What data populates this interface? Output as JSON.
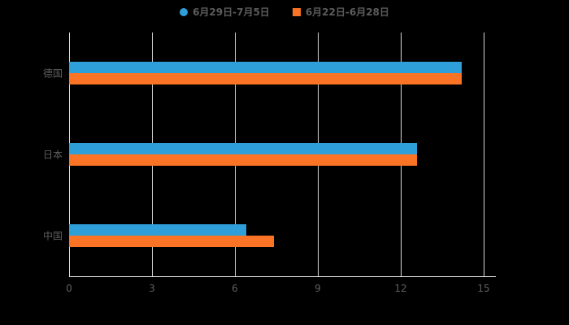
{
  "chart_data": {
    "type": "bar",
    "orientation": "horizontal",
    "title": "",
    "xlabel": "",
    "ylabel": "",
    "categories": [
      "德国",
      "日本",
      "中国"
    ],
    "series": [
      {
        "name": "6月29日-7月5日",
        "color": "#2E9FD9",
        "marker": "circle",
        "values": [
          14.2,
          12.6,
          6.4
        ]
      },
      {
        "name": "6月22日-6月28日",
        "color": "#FB7426",
        "marker": "square",
        "values": [
          14.2,
          12.6,
          7.4
        ]
      }
    ],
    "xlim": [
      0,
      15
    ],
    "x_ticks": [
      0,
      3,
      6,
      9,
      12,
      15
    ],
    "grid": true,
    "legend_position": "top",
    "background_color": "#000000",
    "gridline_color": "#d8d8d8",
    "text_color": "#5f5f5f"
  }
}
